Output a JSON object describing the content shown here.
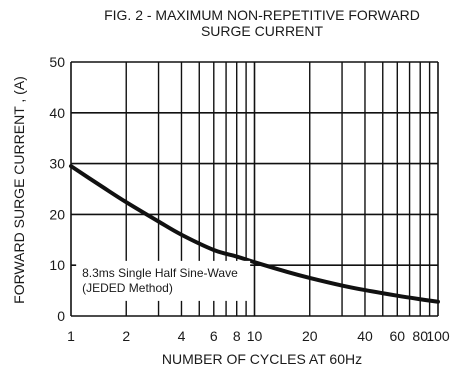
{
  "chart_data": {
    "type": "line",
    "title": "FIG. 2 - MAXIMUM NON-REPETITIVE FORWARD",
    "subtitle": "SURGE CURRENT",
    "xlabel": "NUMBER OF CYCLES AT 60Hz",
    "ylabel": "FORWARD SURGE CURRENT , (A)",
    "xscale": "log",
    "xlim": [
      1,
      100
    ],
    "ylim": [
      0,
      50
    ],
    "grid": true,
    "xticks": [
      {
        "value": 1,
        "label": "1"
      },
      {
        "value": 2,
        "label": "2"
      },
      {
        "value": 4,
        "label": "4"
      },
      {
        "value": 6,
        "label": "6"
      },
      {
        "value": 8,
        "label": "8"
      },
      {
        "value": 10,
        "label": "10"
      },
      {
        "value": 20,
        "label": "20"
      },
      {
        "value": 40,
        "label": "40"
      },
      {
        "value": 60,
        "label": "60"
      },
      {
        "value": 80,
        "label": "80"
      },
      {
        "value": 100,
        "label": "100"
      }
    ],
    "yticks": [
      {
        "value": 0,
        "label": "0"
      },
      {
        "value": 10,
        "label": "10"
      },
      {
        "value": 20,
        "label": "20"
      },
      {
        "value": 30,
        "label": "30"
      },
      {
        "value": 40,
        "label": "40"
      },
      {
        "value": 50,
        "label": "50"
      }
    ],
    "x_gridlines": [
      1,
      2,
      3,
      4,
      5,
      6,
      7,
      8,
      9,
      10,
      20,
      30,
      40,
      50,
      60,
      70,
      80,
      90,
      100
    ],
    "y_gridlines": [
      0,
      10,
      20,
      30,
      40,
      50
    ],
    "series": [
      {
        "color": "#111111",
        "x": [
          1,
          1.5,
          2,
          3,
          4,
          6,
          8,
          10,
          15,
          20,
          30,
          40,
          60,
          80,
          100
        ],
        "y": [
          29.5,
          25.3,
          22.4,
          18.6,
          16.0,
          13.0,
          11.7,
          10.6,
          8.7,
          7.5,
          6.0,
          5.1,
          4.0,
          3.3,
          2.8
        ]
      }
    ],
    "annotation": {
      "lines": [
        "8.3ms Single Half Sine-Wave",
        "(JEDED Method)"
      ],
      "x": 1.15,
      "y": 7.7
    }
  }
}
